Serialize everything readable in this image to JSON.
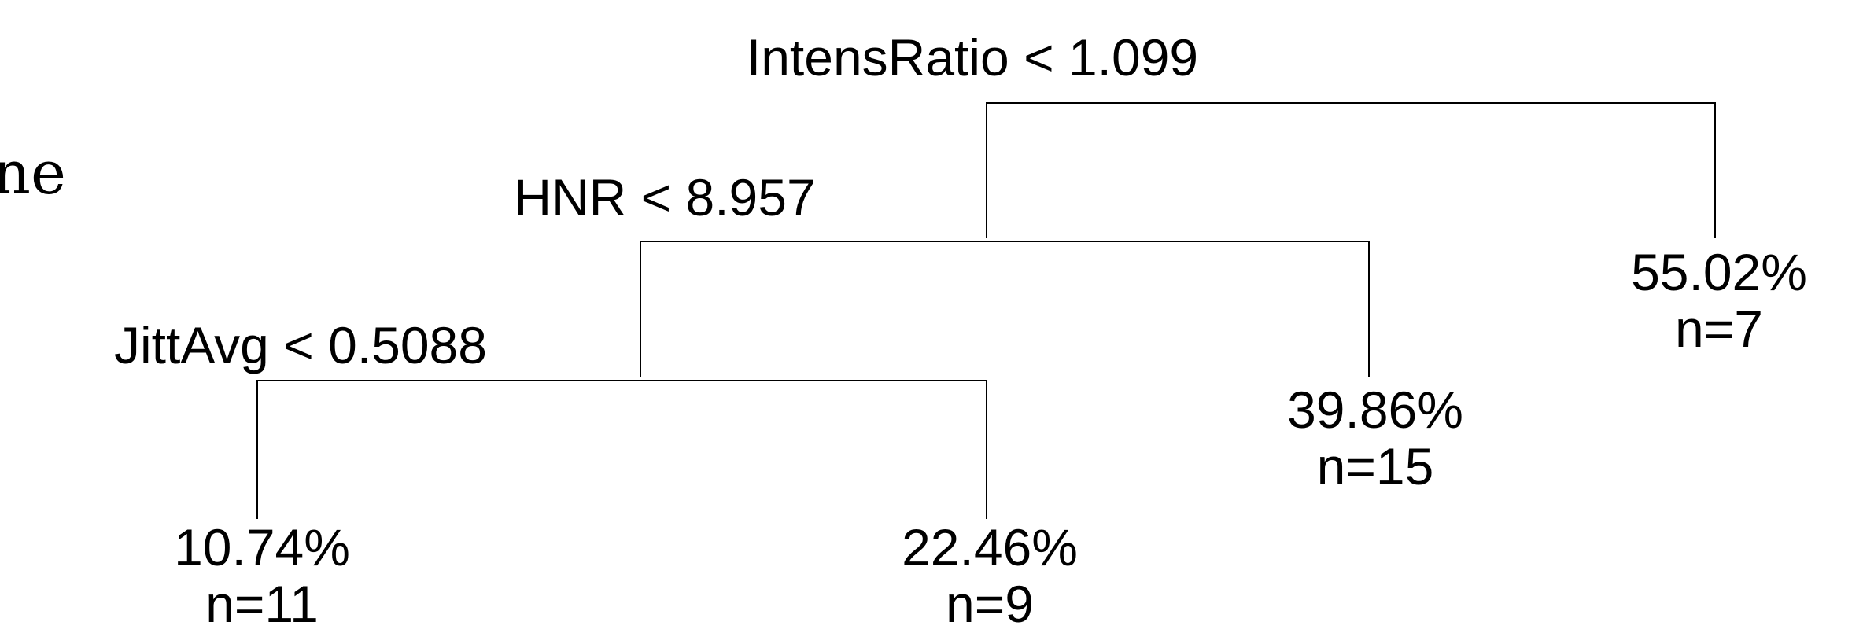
{
  "margin_text": "ne",
  "splits": {
    "root": "IntensRatio < 1.099",
    "hnr": "HNR < 8.957",
    "jitter": "JittAvg < 0.5088"
  },
  "leaves": {
    "a": {
      "value": "10.74%",
      "count": "n=11"
    },
    "b": {
      "value": "22.46%",
      "count": "n=9"
    },
    "c": {
      "value": "39.86%",
      "count": "n=15"
    },
    "d": {
      "value": "55.02%",
      "count": "n=7"
    }
  },
  "colors": {
    "ink": "#000000",
    "background": "#ffffff"
  }
}
